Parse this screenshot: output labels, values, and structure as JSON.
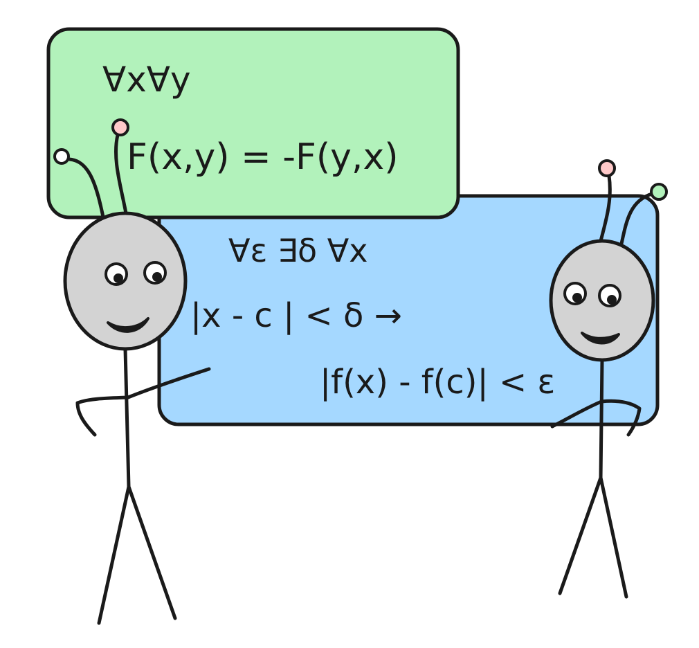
{
  "colors": {
    "ink": "#1a1a1a",
    "green_panel": "#b2f2bb",
    "blue_panel": "#a5d8ff",
    "head_fill": "#d3d3d3",
    "antenna_pink": "#ffc9c9",
    "antenna_green": "#b2f2bb",
    "antenna_white": "#ffffff"
  },
  "green_panel": {
    "line1": "∀x∀y",
    "line2": "F(x,y) = -F(y,x)"
  },
  "blue_panel": {
    "line1": "∀ε ∃δ ∀x",
    "line2": "|x - c | < δ →",
    "line3": "|f(x) - f(c)| < ε"
  }
}
